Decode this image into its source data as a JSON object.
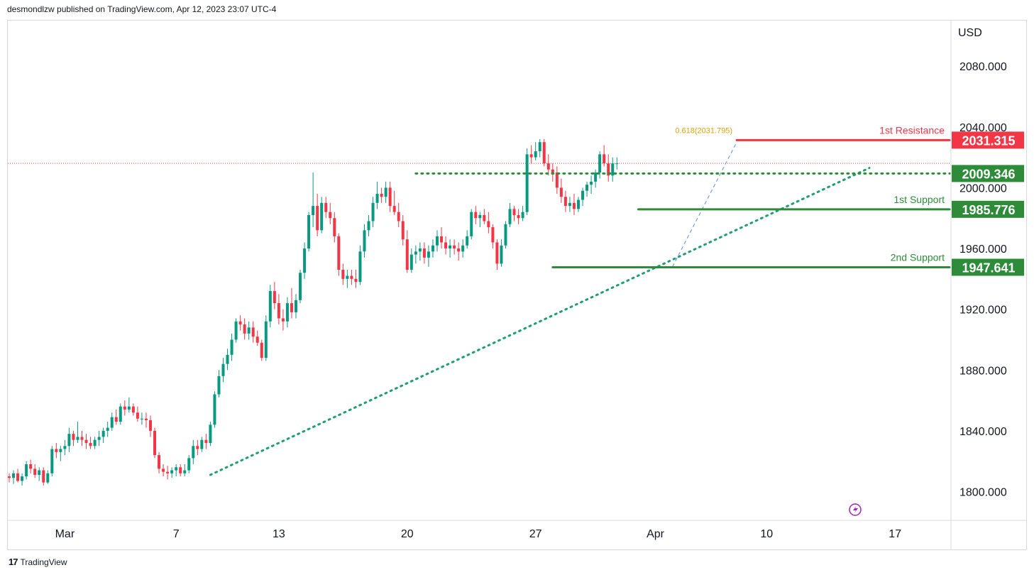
{
  "header": {
    "published": "desmondlzw published on TradingView.com, Apr 12, 2023 23:07 UTC-4"
  },
  "footer": {
    "brand": "TradingView",
    "logo_glyph": "17"
  },
  "colors": {
    "up": "#089981",
    "down": "#f23645",
    "resistance": "#f23645",
    "support": "#2e8b3a",
    "trend": "#1f9e75",
    "fib": "#e0a20c",
    "grid": "#ffffff",
    "axis_text": "#131722"
  },
  "chart_data": {
    "type": "candlestick",
    "currency_label": "USD",
    "ylim": [
      1782,
      2110
    ],
    "y_ticks": [
      "2080.000",
      "2040.000",
      "2000.000",
      "1960.000",
      "1920.000",
      "1880.000",
      "1840.000",
      "1800.000"
    ],
    "y_tick_values": [
      2080,
      2040,
      2000,
      1960,
      1920,
      1880,
      1840,
      1800
    ],
    "x_ticks": [
      {
        "label": "Mar",
        "index": 13
      },
      {
        "label": "7",
        "index": 39
      },
      {
        "label": "13",
        "index": 63
      },
      {
        "label": "20",
        "index": 93
      },
      {
        "label": "27",
        "index": 123
      },
      {
        "label": "Apr",
        "index": 151
      },
      {
        "label": "10",
        "index": 177
      },
      {
        "label": "17",
        "index": 207
      }
    ],
    "levels": [
      {
        "label": "1st Resistance",
        "price": 2031.315,
        "price_text": "2031.315",
        "kind": "resistance"
      },
      {
        "label": "",
        "price": 2009.346,
        "price_text": "2009.346",
        "kind": "pivot"
      },
      {
        "label": "1st Support",
        "price": 1985.776,
        "price_text": "1985.776",
        "kind": "support"
      },
      {
        "label": "2nd Support",
        "price": 1947.641,
        "price_text": "1947.641",
        "kind": "support"
      }
    ],
    "fib_label": "0.618(2031.795)",
    "fib_price": 2031.795,
    "trendline": {
      "from": {
        "index": 47,
        "price": 1811
      },
      "to": {
        "index": 201,
        "price": 2013
      }
    },
    "candles": [
      [
        1810,
        1812,
        1806,
        1809
      ],
      [
        1809,
        1814,
        1805,
        1812
      ],
      [
        1812,
        1815,
        1806,
        1807
      ],
      [
        1807,
        1812,
        1804,
        1810
      ],
      [
        1810,
        1820,
        1808,
        1818
      ],
      [
        1818,
        1821,
        1812,
        1815
      ],
      [
        1815,
        1818,
        1809,
        1811
      ],
      [
        1811,
        1816,
        1807,
        1814
      ],
      [
        1814,
        1816,
        1804,
        1806
      ],
      [
        1806,
        1814,
        1805,
        1812
      ],
      [
        1812,
        1830,
        1810,
        1828
      ],
      [
        1828,
        1832,
        1822,
        1826
      ],
      [
        1826,
        1830,
        1820,
        1828
      ],
      [
        1828,
        1834,
        1824,
        1830
      ],
      [
        1830,
        1842,
        1826,
        1838
      ],
      [
        1838,
        1840,
        1830,
        1834
      ],
      [
        1834,
        1846,
        1832,
        1836
      ],
      [
        1836,
        1840,
        1830,
        1834
      ],
      [
        1834,
        1838,
        1828,
        1832
      ],
      [
        1832,
        1836,
        1828,
        1830
      ],
      [
        1830,
        1836,
        1828,
        1834
      ],
      [
        1834,
        1840,
        1830,
        1836
      ],
      [
        1836,
        1842,
        1832,
        1840
      ],
      [
        1840,
        1846,
        1836,
        1842
      ],
      [
        1842,
        1852,
        1840,
        1849
      ],
      [
        1849,
        1854,
        1844,
        1846
      ],
      [
        1846,
        1858,
        1844,
        1856
      ],
      [
        1856,
        1860,
        1850,
        1854
      ],
      [
        1854,
        1862,
        1852,
        1856
      ],
      [
        1856,
        1858,
        1850,
        1852
      ],
      [
        1852,
        1856,
        1846,
        1848
      ],
      [
        1848,
        1852,
        1844,
        1848
      ],
      [
        1848,
        1852,
        1842,
        1847
      ],
      [
        1847,
        1850,
        1836,
        1840
      ],
      [
        1840,
        1842,
        1822,
        1824
      ],
      [
        1824,
        1826,
        1812,
        1815
      ],
      [
        1815,
        1818,
        1810,
        1813
      ],
      [
        1813,
        1817,
        1808,
        1812
      ],
      [
        1812,
        1816,
        1809,
        1814
      ],
      [
        1814,
        1818,
        1810,
        1816
      ],
      [
        1816,
        1818,
        1810,
        1812
      ],
      [
        1812,
        1818,
        1810,
        1814
      ],
      [
        1814,
        1824,
        1812,
        1822
      ],
      [
        1822,
        1834,
        1818,
        1830
      ],
      [
        1830,
        1834,
        1824,
        1828
      ],
      [
        1828,
        1836,
        1826,
        1834
      ],
      [
        1834,
        1838,
        1828,
        1832
      ],
      [
        1832,
        1846,
        1830,
        1844
      ],
      [
        1844,
        1866,
        1842,
        1864
      ],
      [
        1864,
        1880,
        1862,
        1876
      ],
      [
        1876,
        1888,
        1872,
        1884
      ],
      [
        1884,
        1894,
        1880,
        1890
      ],
      [
        1890,
        1904,
        1886,
        1900
      ],
      [
        1900,
        1914,
        1898,
        1912
      ],
      [
        1912,
        1916,
        1906,
        1910
      ],
      [
        1910,
        1914,
        1900,
        1904
      ],
      [
        1904,
        1912,
        1900,
        1908
      ],
      [
        1908,
        1912,
        1898,
        1902
      ],
      [
        1902,
        1906,
        1896,
        1898
      ],
      [
        1898,
        1900,
        1886,
        1888
      ],
      [
        1888,
        1916,
        1886,
        1912
      ],
      [
        1912,
        1936,
        1908,
        1932
      ],
      [
        1932,
        1938,
        1920,
        1924
      ],
      [
        1924,
        1930,
        1910,
        1914
      ],
      [
        1914,
        1920,
        1906,
        1912
      ],
      [
        1912,
        1928,
        1908,
        1924
      ],
      [
        1924,
        1934,
        1914,
        1918
      ],
      [
        1918,
        1930,
        1914,
        1926
      ],
      [
        1926,
        1946,
        1924,
        1944
      ],
      [
        1944,
        1964,
        1940,
        1960
      ],
      [
        1960,
        1984,
        1958,
        1982
      ],
      [
        1982,
        2010,
        1974,
        1988
      ],
      [
        1988,
        1996,
        1968,
        1972
      ],
      [
        1972,
        1994,
        1970,
        1990
      ],
      [
        1990,
        1994,
        1980,
        1984
      ],
      [
        1984,
        1990,
        1976,
        1980
      ],
      [
        1980,
        1984,
        1964,
        1968
      ],
      [
        1968,
        1970,
        1942,
        1946
      ],
      [
        1946,
        1950,
        1936,
        1940
      ],
      [
        1940,
        1946,
        1934,
        1942
      ],
      [
        1942,
        1946,
        1936,
        1940
      ],
      [
        1940,
        1946,
        1934,
        1938
      ],
      [
        1938,
        1962,
        1936,
        1958
      ],
      [
        1958,
        1976,
        1954,
        1972
      ],
      [
        1972,
        1982,
        1968,
        1978
      ],
      [
        1978,
        1994,
        1974,
        1990
      ],
      [
        1990,
        2004,
        1986,
        1996
      ],
      [
        1996,
        2000,
        1990,
        1994
      ],
      [
        1994,
        2004,
        1990,
        2000
      ],
      [
        2000,
        2004,
        1984,
        1988
      ],
      [
        1988,
        1998,
        1982,
        1984
      ],
      [
        1984,
        1990,
        1974,
        1978
      ],
      [
        1978,
        1982,
        1962,
        1966
      ],
      [
        1966,
        1972,
        1944,
        1946
      ],
      [
        1946,
        1960,
        1944,
        1956
      ],
      [
        1956,
        1962,
        1950,
        1958
      ],
      [
        1958,
        1964,
        1952,
        1960
      ],
      [
        1960,
        1964,
        1950,
        1954
      ],
      [
        1954,
        1962,
        1948,
        1958
      ],
      [
        1958,
        1966,
        1954,
        1962
      ],
      [
        1962,
        1972,
        1958,
        1968
      ],
      [
        1968,
        1974,
        1960,
        1964
      ],
      [
        1964,
        1968,
        1956,
        1960
      ],
      [
        1960,
        1966,
        1954,
        1962
      ],
      [
        1962,
        1966,
        1956,
        1960
      ],
      [
        1960,
        1964,
        1952,
        1958
      ],
      [
        1958,
        1966,
        1954,
        1962
      ],
      [
        1962,
        1972,
        1960,
        1968
      ],
      [
        1968,
        1986,
        1966,
        1984
      ],
      [
        1984,
        1988,
        1976,
        1980
      ],
      [
        1980,
        1984,
        1974,
        1982
      ],
      [
        1982,
        1986,
        1976,
        1978
      ],
      [
        1978,
        1984,
        1970,
        1974
      ],
      [
        1974,
        1976,
        1960,
        1964
      ],
      [
        1964,
        1966,
        1946,
        1950
      ],
      [
        1950,
        1966,
        1948,
        1962
      ],
      [
        1962,
        1978,
        1960,
        1976
      ],
      [
        1976,
        1990,
        1974,
        1986
      ],
      [
        1986,
        1988,
        1978,
        1982
      ],
      [
        1982,
        1986,
        1976,
        1980
      ],
      [
        1980,
        1988,
        1978,
        1984
      ],
      [
        1984,
        2026,
        1982,
        2022
      ],
      [
        2022,
        2028,
        2016,
        2020
      ],
      [
        2020,
        2030,
        2018,
        2024
      ],
      [
        2024,
        2032,
        2020,
        2030
      ],
      [
        2030,
        2032,
        2014,
        2016
      ],
      [
        2016,
        2022,
        2008,
        2012
      ],
      [
        2012,
        2016,
        2004,
        2010
      ],
      [
        2010,
        2014,
        1996,
        2000
      ],
      [
        2000,
        2006,
        1990,
        1994
      ],
      [
        1994,
        1998,
        1984,
        1988
      ],
      [
        1988,
        1994,
        1984,
        1990
      ],
      [
        1990,
        1996,
        1982,
        1986
      ],
      [
        1986,
        1994,
        1984,
        1992
      ],
      [
        1992,
        2000,
        1988,
        1998
      ],
      [
        1998,
        2004,
        1994,
        2002
      ],
      [
        2002,
        2008,
        1996,
        2004
      ],
      [
        2004,
        2012,
        2000,
        2010
      ],
      [
        2010,
        2024,
        2006,
        2022
      ],
      [
        2022,
        2028,
        2014,
        2016
      ],
      [
        2016,
        2022,
        2004,
        2008
      ],
      [
        2008,
        2020,
        2004,
        2016
      ],
      [
        2016,
        2020,
        2012,
        2016
      ]
    ]
  }
}
